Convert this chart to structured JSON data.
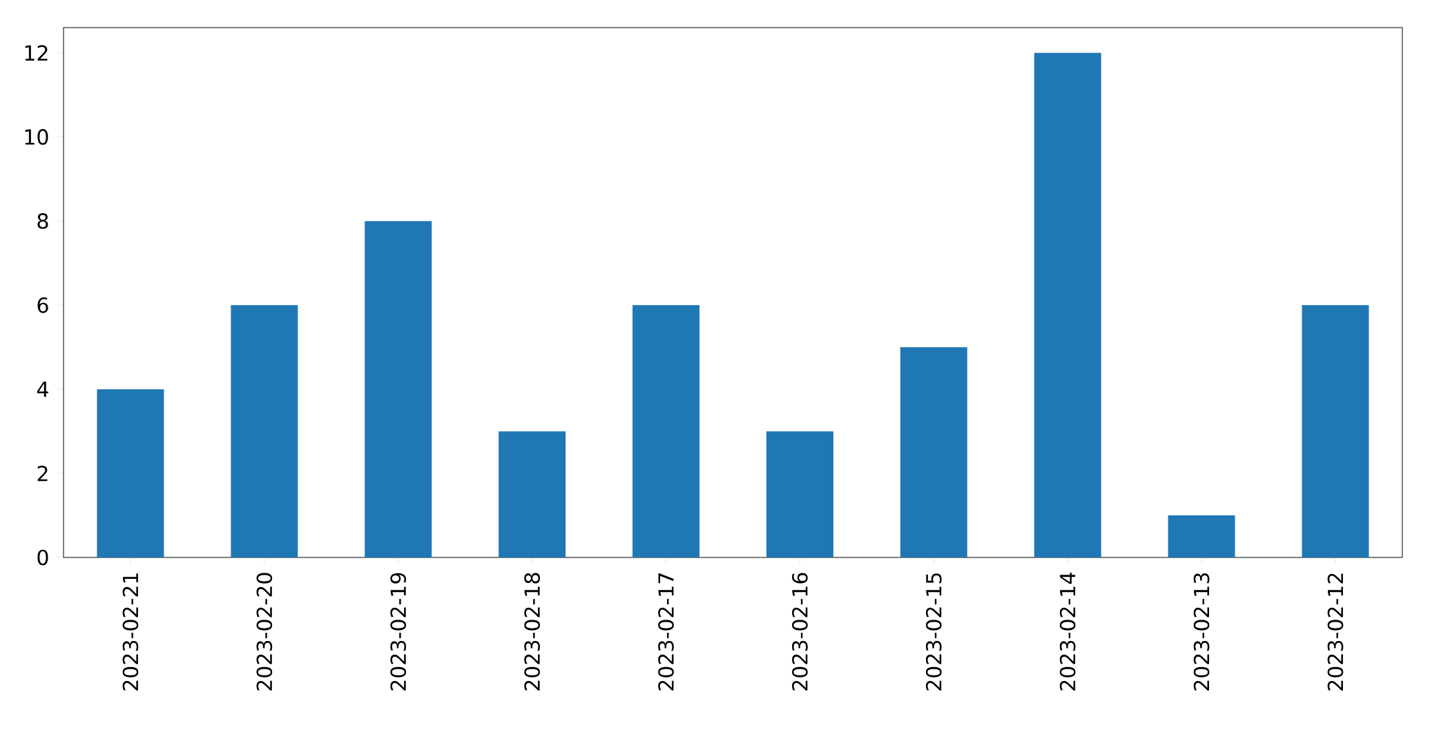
{
  "chart_data": {
    "type": "bar",
    "categories": [
      "2023-02-21",
      "2023-02-20",
      "2023-02-19",
      "2023-02-18",
      "2023-02-17",
      "2023-02-16",
      "2023-02-15",
      "2023-02-14",
      "2023-02-13",
      "2023-02-12"
    ],
    "values": [
      4,
      6,
      8,
      3,
      6,
      3,
      5,
      12,
      1,
      6
    ],
    "color": "#1f77b4",
    "ylim": [
      0,
      12.6
    ],
    "yticks": [
      0,
      2,
      4,
      6,
      8,
      10,
      12
    ]
  }
}
